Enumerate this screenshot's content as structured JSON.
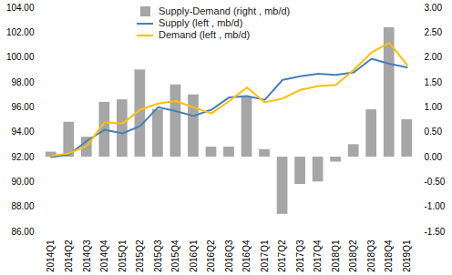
{
  "chart_data": {
    "type": "bar",
    "categories": [
      "2014Q1",
      "2014Q2",
      "2014Q3",
      "2014Q4",
      "2015Q1",
      "2015Q2",
      "2015Q3",
      "2015Q4",
      "2016Q1",
      "2016Q2",
      "2016Q3",
      "2016Q4",
      "2017Q1",
      "2017Q2",
      "2017Q3",
      "2017Q4",
      "2018Q1",
      "2018Q2",
      "2018Q3",
      "2018Q4",
      "2019Q1"
    ],
    "series": [
      {
        "name": "Supply-Demand (right , mb/d)",
        "type": "bar",
        "axis": "y2",
        "color": "#a6a6a6",
        "values": [
          0.1,
          0.7,
          0.4,
          1.1,
          1.15,
          1.75,
          0.95,
          1.45,
          1.25,
          0.2,
          0.2,
          1.2,
          0.15,
          -1.15,
          -0.55,
          -0.5,
          -0.1,
          0.25,
          0.95,
          2.6,
          0.75
        ]
      },
      {
        "name": "Supply (left , mb/d)",
        "type": "line",
        "color": "#4a7ebb",
        "values": [
          92.0,
          92.2,
          93.3,
          94.2,
          93.9,
          94.5,
          96.0,
          95.7,
          95.3,
          95.8,
          96.8,
          96.9,
          96.6,
          98.2,
          98.5,
          98.7,
          98.6,
          98.8,
          99.9,
          99.5,
          99.2
        ]
      },
      {
        "name": "Demand (left , mb/d)",
        "type": "line",
        "color": "#ffc000",
        "values": [
          92.1,
          92.3,
          92.9,
          94.8,
          94.7,
          95.8,
          96.3,
          96.5,
          96.0,
          95.5,
          96.5,
          97.6,
          96.4,
          96.7,
          97.4,
          97.7,
          97.8,
          99.0,
          100.4,
          101.2,
          99.4
        ]
      }
    ],
    "ylim": [
      86,
      104
    ],
    "yticks": [
      {
        "value": 86,
        "label": "86.00"
      },
      {
        "value": 88,
        "label": "88.00"
      },
      {
        "value": 90,
        "label": "90.00"
      },
      {
        "value": 92,
        "label": "92.00"
      },
      {
        "value": 94,
        "label": "94.00"
      },
      {
        "value": 96,
        "label": "96.00"
      },
      {
        "value": 98,
        "label": "98.00"
      },
      {
        "value": 100,
        "label": "100.00"
      },
      {
        "value": 102,
        "label": "102.00"
      },
      {
        "value": 104,
        "label": "104.00"
      }
    ],
    "y2lim": [
      -1.5,
      3
    ],
    "y2ticks": [
      {
        "value": -1.5,
        "label": "-1.50"
      },
      {
        "value": -1,
        "label": "-1.00"
      },
      {
        "value": -0.5,
        "label": "-0.50"
      },
      {
        "value": 0,
        "label": "0.00"
      },
      {
        "value": 0.5,
        "label": "0.50"
      },
      {
        "value": 1,
        "label": "1.00"
      },
      {
        "value": 1.5,
        "label": "1.50"
      },
      {
        "value": 2,
        "label": "2.00"
      },
      {
        "value": 2.5,
        "label": "2.50"
      },
      {
        "value": 3,
        "label": "3.00"
      }
    ],
    "legend": "top"
  }
}
